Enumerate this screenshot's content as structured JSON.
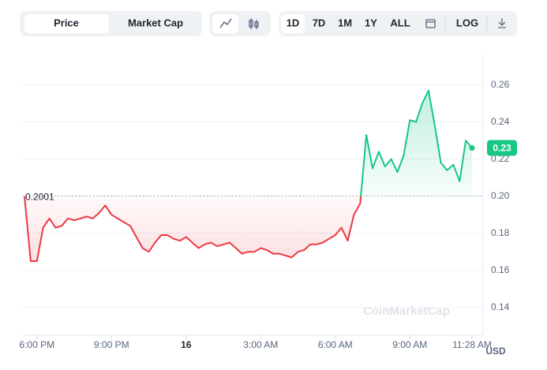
{
  "toolbar": {
    "tabs": [
      "Price",
      "Market Cap"
    ],
    "ranges": [
      "1D",
      "7D",
      "1M",
      "1Y",
      "ALL"
    ],
    "log": "LOG"
  },
  "chart_data": {
    "type": "line",
    "categories": [
      null,
      null,
      "6:00 PM",
      null,
      null,
      null,
      null,
      null,
      null,
      null,
      null,
      null,
      null,
      null,
      "9:00 PM",
      null,
      null,
      null,
      null,
      null,
      null,
      null,
      null,
      null,
      null,
      null,
      "16",
      null,
      null,
      null,
      null,
      null,
      null,
      null,
      null,
      null,
      null,
      null,
      "3:00 AM",
      null,
      null,
      null,
      null,
      null,
      null,
      null,
      null,
      null,
      null,
      null,
      "6:00 AM",
      null,
      null,
      null,
      null,
      null,
      null,
      null,
      null,
      null,
      null,
      null,
      "9:00 AM",
      null,
      null,
      null,
      null,
      null,
      null,
      null,
      null,
      null,
      "11:28 AM"
    ],
    "series": [
      {
        "name": "Price",
        "up_color": "#16c784",
        "down_color": "#ea3943",
        "values": [
          0.2,
          0.165,
          0.165,
          0.183,
          0.188,
          0.183,
          0.184,
          0.188,
          0.187,
          0.188,
          0.189,
          0.188,
          0.191,
          0.195,
          0.19,
          0.188,
          0.186,
          0.184,
          0.178,
          0.172,
          0.17,
          0.175,
          0.179,
          0.179,
          0.177,
          0.176,
          0.178,
          0.175,
          0.172,
          0.174,
          0.175,
          0.173,
          0.174,
          0.175,
          0.172,
          0.169,
          0.17,
          0.17,
          0.172,
          0.171,
          0.169,
          0.169,
          0.168,
          0.167,
          0.17,
          0.171,
          0.174,
          0.174,
          0.175,
          0.177,
          0.179,
          0.183,
          0.176,
          0.19,
          0.196,
          0.233,
          0.215,
          0.224,
          0.216,
          0.22,
          0.213,
          0.222,
          0.241,
          0.24,
          0.25,
          0.257,
          0.238,
          0.218,
          0.214,
          0.217,
          0.208,
          0.23,
          0.226
        ]
      }
    ],
    "baseline": 0.2001,
    "current_price_label": "0.23",
    "y_unit": "USD",
    "watermark": "CoinMarketCap",
    "ylim": [
      0.125,
      0.276
    ],
    "yticks": [
      0.14,
      0.16,
      0.18,
      {
        "value": 0.2,
        "label": "0.20"
      },
      0.22,
      0.24,
      0.26
    ],
    "grid": true
  }
}
